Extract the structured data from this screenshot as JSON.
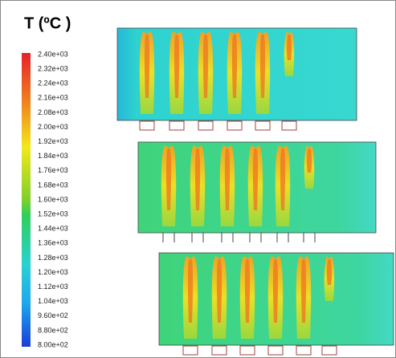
{
  "legend": {
    "title": "T (ºC )",
    "labels": [
      "2.40e+03",
      "2.32e+03",
      "2.24e+03",
      "2.16e+03",
      "2.08e+03",
      "2.00e+03",
      "1.92e+03",
      "1.84e+03",
      "1.76e+03",
      "1.68e+03",
      "1.60e+03",
      "1.52e+03",
      "1.44e+03",
      "1.36e+03",
      "1.28e+03",
      "1.20e+03",
      "1.12e+03",
      "1.04e+03",
      "9.60e+02",
      "8.80e+02",
      "8.00e+02"
    ]
  }
}
